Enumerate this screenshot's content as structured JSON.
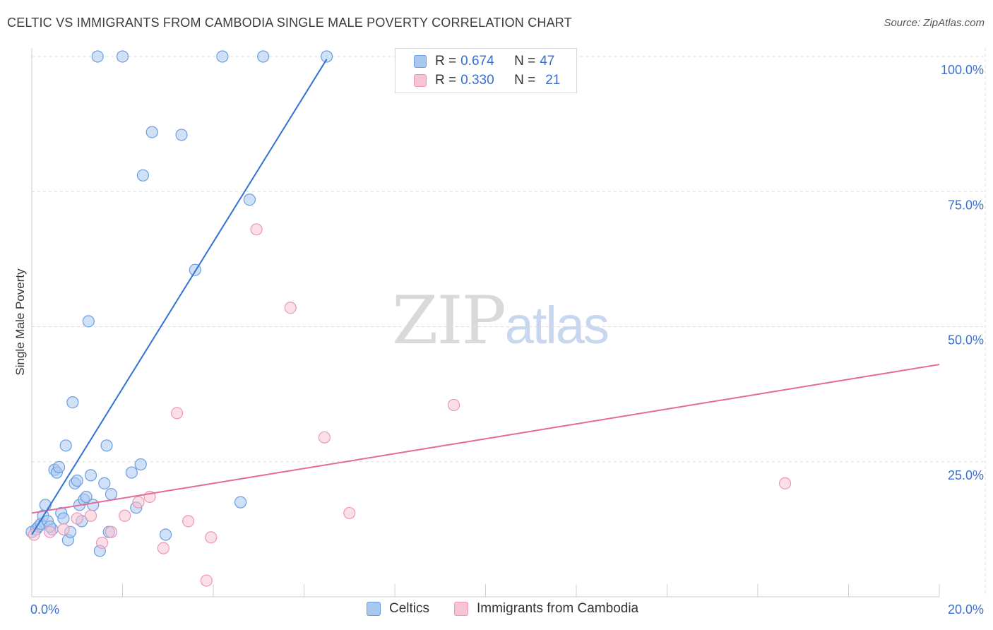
{
  "header": {
    "title": "CELTIC VS IMMIGRANTS FROM CAMBODIA SINGLE MALE POVERTY CORRELATION CHART",
    "source": "Source: ZipAtlas.com"
  },
  "watermark": {
    "zip": "ZIP",
    "atlas": "atlas"
  },
  "stats_legend": [
    {
      "r_label": "R = ",
      "r_value": "0.674",
      "n_label": "N = ",
      "n_value": "47",
      "color": "#a9c8f0"
    },
    {
      "r_label": "R = ",
      "r_value": "0.330",
      "n_label": "N = ",
      "n_value": "21",
      "color": "#f5bcd0"
    }
  ],
  "bottom_legend": [
    {
      "label": "Celtics",
      "color": "#a9c8f0"
    },
    {
      "label": "Immigrants from Cambodia",
      "color": "#f5bcd0"
    }
  ],
  "colors": {
    "celtics_fill": "#a9c8f0",
    "celtics_stroke": "#6a9ee0",
    "celtics_line": "#2f72cf",
    "cambodia_fill": "#f7c4d5",
    "cambodia_stroke": "#ec97b6",
    "cambodia_line": "#e46a98",
    "tick_label": "#3a6fd0",
    "grid": "#dddddd"
  },
  "chart_data": {
    "type": "scatter",
    "title": "CELTIC VS IMMIGRANTS FROM CAMBODIA SINGLE MALE POVERTY CORRELATION CHART",
    "xlabel": "",
    "ylabel": "Single Male Poverty",
    "xlim": [
      0,
      20
    ],
    "ylim": [
      0,
      100
    ],
    "x_tick_labels": [
      "0.0%",
      "20.0%"
    ],
    "y_ticks": [
      25,
      50,
      75,
      100
    ],
    "y_tick_labels": [
      "25.0%",
      "50.0%",
      "75.0%",
      "100.0%"
    ],
    "grid": true,
    "legend_position": "top-center",
    "series": [
      {
        "name": "Celtics",
        "points": [
          [
            0.0,
            12.0
          ],
          [
            0.1,
            12.5
          ],
          [
            0.15,
            13.0
          ],
          [
            0.2,
            13.5
          ],
          [
            0.25,
            15.0
          ],
          [
            0.3,
            17.0
          ],
          [
            0.35,
            14.0
          ],
          [
            0.45,
            12.5
          ],
          [
            0.5,
            23.5
          ],
          [
            0.55,
            23.0
          ],
          [
            0.6,
            24.0
          ],
          [
            0.65,
            15.5
          ],
          [
            0.7,
            14.5
          ],
          [
            0.75,
            28.0
          ],
          [
            0.8,
            10.5
          ],
          [
            0.85,
            12.0
          ],
          [
            0.9,
            36.0
          ],
          [
            0.95,
            21.0
          ],
          [
            1.0,
            21.5
          ],
          [
            1.05,
            17.0
          ],
          [
            1.1,
            14.0
          ],
          [
            1.15,
            18.0
          ],
          [
            1.2,
            18.5
          ],
          [
            1.25,
            51.0
          ],
          [
            1.3,
            22.5
          ],
          [
            1.35,
            17.0
          ],
          [
            1.45,
            100.0
          ],
          [
            1.5,
            8.5
          ],
          [
            1.6,
            21.0
          ],
          [
            1.65,
            28.0
          ],
          [
            1.75,
            19.0
          ],
          [
            2.0,
            100.0
          ],
          [
            2.2,
            23.0
          ],
          [
            2.3,
            16.5
          ],
          [
            2.4,
            24.5
          ],
          [
            2.45,
            78.0
          ],
          [
            2.65,
            86.0
          ],
          [
            2.95,
            11.5
          ],
          [
            3.3,
            85.5
          ],
          [
            3.6,
            60.5
          ],
          [
            4.2,
            100.0
          ],
          [
            4.6,
            17.5
          ],
          [
            4.8,
            73.5
          ],
          [
            5.1,
            100.0
          ],
          [
            6.5,
            100.0
          ],
          [
            1.7,
            12.0
          ],
          [
            0.4,
            13.0
          ]
        ]
      },
      {
        "name": "Immigrants from Cambodia",
        "points": [
          [
            0.05,
            11.5
          ],
          [
            0.4,
            12.0
          ],
          [
            0.7,
            12.5
          ],
          [
            1.0,
            14.5
          ],
          [
            1.3,
            15.0
          ],
          [
            1.55,
            10.0
          ],
          [
            1.75,
            12.0
          ],
          [
            2.05,
            15.0
          ],
          [
            2.35,
            17.5
          ],
          [
            2.6,
            18.5
          ],
          [
            2.9,
            9.0
          ],
          [
            3.2,
            34.0
          ],
          [
            3.45,
            14.0
          ],
          [
            3.85,
            3.0
          ],
          [
            3.95,
            11.0
          ],
          [
            4.95,
            68.0
          ],
          [
            5.7,
            53.5
          ],
          [
            6.45,
            29.5
          ],
          [
            7.0,
            15.5
          ],
          [
            9.3,
            35.5
          ],
          [
            16.6,
            21.0
          ]
        ]
      }
    ],
    "trend_lines": [
      {
        "name": "Celtics",
        "x": [
          0.0,
          6.5
        ],
        "y": [
          11.5,
          99.5
        ]
      },
      {
        "name": "Immigrants from Cambodia",
        "x": [
          0.0,
          20.0
        ],
        "y": [
          15.5,
          43.0
        ]
      }
    ]
  }
}
